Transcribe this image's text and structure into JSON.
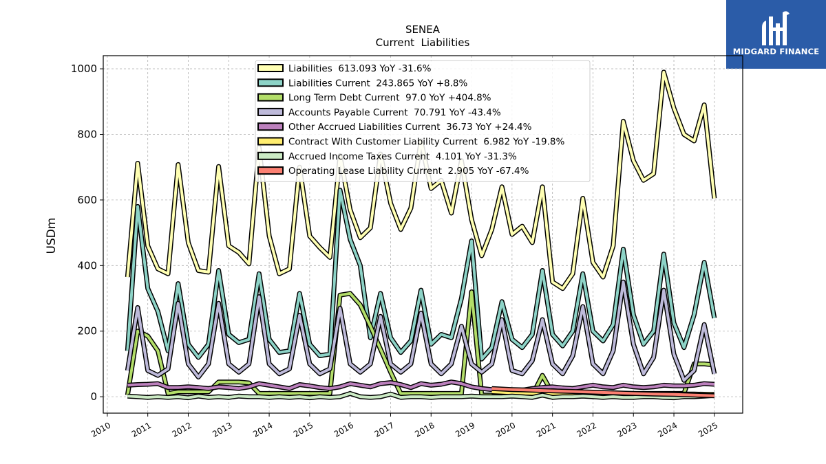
{
  "brand": {
    "name": "MIDGARD FINANCE",
    "background": "#2b5ca8",
    "icon": "midgard-logo-icon"
  },
  "chart_data": {
    "type": "line",
    "title": "SENEA",
    "subtitle": "Current  Liabilities",
    "ylabel": "USDm",
    "xlabel": "",
    "xlim": [
      2009.9,
      2025.7
    ],
    "ylim": [
      -50,
      1040
    ],
    "yticks": [
      0,
      200,
      400,
      600,
      800,
      1000
    ],
    "xticks": [
      "2010",
      "2011",
      "2012",
      "2013",
      "2014",
      "2015",
      "2016",
      "2017",
      "2018",
      "2019",
      "2020",
      "2021",
      "2022",
      "2023",
      "2024",
      "2025"
    ],
    "grid": true,
    "legend_position": "top-center",
    "series": [
      {
        "name": "Liabilities",
        "legend": "Liabilities  613.093 YoY -31.6%",
        "color": "#ffffb3",
        "x": [
          2010.5,
          2010.75,
          2011.0,
          2011.25,
          2011.5,
          2011.75,
          2012.0,
          2012.25,
          2012.5,
          2012.75,
          2013.0,
          2013.25,
          2013.5,
          2013.75,
          2014.0,
          2014.25,
          2014.5,
          2014.75,
          2015.0,
          2015.25,
          2015.5,
          2015.75,
          2016.0,
          2016.25,
          2016.5,
          2016.75,
          2017.0,
          2017.25,
          2017.5,
          2017.75,
          2018.0,
          2018.25,
          2018.5,
          2018.75,
          2019.0,
          2019.25,
          2019.5,
          2019.75,
          2020.0,
          2020.25,
          2020.5,
          2020.75,
          2021.0,
          2021.25,
          2021.5,
          2021.75,
          2022.0,
          2022.25,
          2022.5,
          2022.75,
          2023.0,
          2023.25,
          2023.5,
          2023.75,
          2024.0,
          2024.25,
          2024.5,
          2024.75,
          2025.0
        ],
        "y": [
          365,
          712,
          460,
          390,
          375,
          708,
          470,
          385,
          380,
          702,
          460,
          440,
          405,
          760,
          490,
          375,
          390,
          700,
          490,
          455,
          425,
          735,
          570,
          485,
          515,
          740,
          590,
          510,
          575,
          780,
          635,
          660,
          560,
          720,
          540,
          430,
          510,
          640,
          495,
          520,
          470,
          640,
          350,
          330,
          375,
          605,
          410,
          365,
          460,
          840,
          720,
          660,
          680,
          990,
          880,
          800,
          780,
          890,
          605
        ]
      },
      {
        "name": "Liabilities Current",
        "legend": "Liabilities Current  243.865 YoY +8.8%",
        "color": "#8dd3c7",
        "x": [
          2010.5,
          2010.75,
          2011.0,
          2011.25,
          2011.5,
          2011.75,
          2012.0,
          2012.25,
          2012.5,
          2012.75,
          2013.0,
          2013.25,
          2013.5,
          2013.75,
          2014.0,
          2014.25,
          2014.5,
          2014.75,
          2015.0,
          2015.25,
          2015.5,
          2015.75,
          2016.0,
          2016.25,
          2016.5,
          2016.75,
          2017.0,
          2017.25,
          2017.5,
          2017.75,
          2018.0,
          2018.25,
          2018.5,
          2018.75,
          2019.0,
          2019.25,
          2019.5,
          2019.75,
          2020.0,
          2020.25,
          2020.5,
          2020.75,
          2021.0,
          2021.25,
          2021.5,
          2021.75,
          2022.0,
          2022.25,
          2022.5,
          2022.75,
          2023.0,
          2023.25,
          2023.5,
          2023.75,
          2024.0,
          2024.25,
          2024.5,
          2024.75,
          2025.0
        ],
        "y": [
          140,
          580,
          330,
          260,
          140,
          345,
          160,
          120,
          160,
          385,
          190,
          165,
          175,
          375,
          175,
          135,
          140,
          315,
          160,
          125,
          130,
          630,
          480,
          400,
          180,
          315,
          180,
          135,
          170,
          325,
          160,
          190,
          180,
          300,
          475,
          115,
          150,
          290,
          175,
          150,
          190,
          385,
          190,
          155,
          200,
          375,
          200,
          170,
          220,
          450,
          250,
          160,
          200,
          435,
          225,
          150,
          250,
          410,
          240
        ]
      },
      {
        "name": "Long Term Debt Current",
        "legend": "Long Term Debt Current  97.0 YoY +404.8%",
        "color": "#b3de69",
        "x": [
          2010.5,
          2010.75,
          2011.0,
          2011.25,
          2011.5,
          2011.75,
          2012.0,
          2012.25,
          2012.5,
          2012.75,
          2013.0,
          2013.25,
          2013.5,
          2013.75,
          2014.0,
          2014.25,
          2014.5,
          2014.75,
          2015.0,
          2015.25,
          2015.5,
          2015.75,
          2016.0,
          2016.25,
          2016.5,
          2016.75,
          2017.0,
          2017.25,
          2017.5,
          2017.75,
          2018.0,
          2018.25,
          2018.5,
          2018.75,
          2019.0,
          2019.25,
          2019.5,
          2019.75,
          2020.0,
          2020.25,
          2020.5,
          2020.75,
          2021.0,
          2021.25,
          2021.5,
          2021.75,
          2022.0,
          2022.25,
          2022.5,
          2022.75,
          2023.0,
          2023.25,
          2023.5,
          2023.75,
          2024.0,
          2024.25,
          2024.5,
          2024.75,
          2025.0
        ],
        "y": [
          5,
          200,
          185,
          140,
          10,
          15,
          15,
          15,
          15,
          45,
          45,
          45,
          42,
          10,
          10,
          10,
          10,
          10,
          10,
          10,
          10,
          310,
          315,
          280,
          215,
          145,
          75,
          10,
          10,
          10,
          10,
          10,
          10,
          10,
          320,
          5,
          5,
          5,
          5,
          5,
          5,
          65,
          10,
          10,
          10,
          10,
          10,
          10,
          10,
          10,
          10,
          10,
          10,
          10,
          10,
          10,
          100,
          100,
          97
        ]
      },
      {
        "name": "Accounts Payable Current",
        "legend": "Accounts Payable Current  70.791 YoY -43.4%",
        "color": "#bebada",
        "x": [
          2010.5,
          2010.75,
          2011.0,
          2011.25,
          2011.5,
          2011.75,
          2012.0,
          2012.25,
          2012.5,
          2012.75,
          2013.0,
          2013.25,
          2013.5,
          2013.75,
          2014.0,
          2014.25,
          2014.5,
          2014.75,
          2015.0,
          2015.25,
          2015.5,
          2015.75,
          2016.0,
          2016.25,
          2016.5,
          2016.75,
          2017.0,
          2017.25,
          2017.5,
          2017.75,
          2018.0,
          2018.25,
          2018.5,
          2018.75,
          2019.0,
          2019.25,
          2019.5,
          2019.75,
          2020.0,
          2020.25,
          2020.5,
          2020.75,
          2021.0,
          2021.25,
          2021.5,
          2021.75,
          2022.0,
          2022.25,
          2022.5,
          2022.75,
          2023.0,
          2023.25,
          2023.5,
          2023.75,
          2024.0,
          2024.25,
          2024.5,
          2024.75,
          2025.0
        ],
        "y": [
          80,
          272,
          80,
          65,
          85,
          285,
          100,
          60,
          100,
          285,
          100,
          75,
          100,
          305,
          100,
          70,
          85,
          248,
          100,
          70,
          85,
          270,
          100,
          75,
          100,
          245,
          100,
          75,
          100,
          255,
          100,
          70,
          100,
          215,
          100,
          75,
          100,
          235,
          80,
          70,
          110,
          235,
          100,
          70,
          125,
          275,
          100,
          70,
          140,
          350,
          160,
          70,
          120,
          325,
          130,
          50,
          80,
          220,
          70
        ]
      },
      {
        "name": "Other Accrued Liabilities Current",
        "legend": "Other Accrued Liabilities Current  36.73 YoY +24.4%",
        "color": "#bc80bd",
        "x": [
          2010.5,
          2010.75,
          2011.0,
          2011.25,
          2011.5,
          2011.75,
          2012.0,
          2012.25,
          2012.5,
          2012.75,
          2013.0,
          2013.25,
          2013.5,
          2013.75,
          2014.0,
          2014.25,
          2014.5,
          2014.75,
          2015.0,
          2015.25,
          2015.5,
          2015.75,
          2016.0,
          2016.25,
          2016.5,
          2016.75,
          2017.0,
          2017.25,
          2017.5,
          2017.75,
          2018.0,
          2018.25,
          2018.5,
          2018.75,
          2019.0,
          2019.25,
          2019.5,
          2019.75,
          2020.0,
          2020.25,
          2020.5,
          2020.75,
          2021.0,
          2021.25,
          2021.5,
          2021.75,
          2022.0,
          2022.25,
          2022.5,
          2022.75,
          2023.0,
          2023.25,
          2023.5,
          2023.75,
          2024.0,
          2024.25,
          2024.5,
          2024.75,
          2025.0
        ],
        "y": [
          35,
          37,
          38,
          40,
          28,
          28,
          30,
          28,
          25,
          30,
          28,
          25,
          30,
          40,
          35,
          30,
          25,
          37,
          33,
          28,
          25,
          30,
          40,
          35,
          30,
          40,
          43,
          37,
          28,
          40,
          35,
          38,
          45,
          40,
          30,
          25,
          22,
          20,
          20,
          20,
          25,
          28,
          30,
          27,
          25,
          30,
          35,
          30,
          28,
          35,
          30,
          28,
          30,
          35,
          33,
          33,
          35,
          40,
          38
        ]
      },
      {
        "name": "Contract With Customer Liability Current",
        "legend": "Contract With Customer Liability Current  6.982 YoY -19.8%",
        "color": "#ffed6f",
        "x": [
          2019.5,
          2020.0,
          2020.5,
          2021.0,
          2021.5,
          2022.0,
          2022.5,
          2023.0,
          2023.5,
          2024.0,
          2024.5,
          2025.0
        ],
        "y": [
          15,
          12,
          10,
          9,
          8,
          8,
          9,
          8,
          9,
          8,
          8,
          7
        ]
      },
      {
        "name": "Accrued Income Taxes Current",
        "legend": "Accrued Income Taxes Current  4.101 YoY -31.3%",
        "color": "#ccebc5",
        "x": [
          2010.5,
          2010.75,
          2011.0,
          2011.25,
          2011.5,
          2011.75,
          2012.0,
          2012.25,
          2012.5,
          2012.75,
          2013.0,
          2013.25,
          2013.5,
          2013.75,
          2014.0,
          2014.25,
          2014.5,
          2014.75,
          2015.0,
          2015.25,
          2015.5,
          2015.75,
          2016.0,
          2016.25,
          2016.5,
          2016.75,
          2017.0,
          2017.25,
          2017.5,
          2017.75,
          2018.0,
          2018.25,
          2018.5,
          2018.75,
          2019.0,
          2019.25,
          2019.5,
          2019.75,
          2020.0,
          2020.25,
          2020.5,
          2020.75,
          2021.0,
          2021.25,
          2021.5,
          2021.75,
          2022.0,
          2022.25,
          2022.5,
          2022.75,
          2023.0,
          2023.25,
          2023.5,
          2023.75,
          2024.0,
          2024.25,
          2024.5,
          2024.75,
          2025.0
        ],
        "y": [
          2,
          0,
          -2,
          0,
          -2,
          0,
          -3,
          2,
          -2,
          0,
          -2,
          2,
          0,
          0,
          -2,
          0,
          -2,
          0,
          -3,
          0,
          -2,
          0,
          10,
          0,
          -2,
          0,
          8,
          -2,
          0,
          0,
          -2,
          0,
          0,
          0,
          2,
          0,
          0,
          0,
          2,
          0,
          -2,
          5,
          -2,
          0,
          0,
          2,
          0,
          -2,
          0,
          -2,
          -2,
          0,
          0,
          -2,
          -3,
          0,
          0,
          2,
          4
        ]
      },
      {
        "name": "Operating Lease Liability Current",
        "legend": "Operating Lease Liability Current  2.905 YoY -67.4%",
        "color": "#fb8072",
        "x": [
          2019.5,
          2020.0,
          2020.5,
          2021.0,
          2021.5,
          2022.0,
          2022.5,
          2023.0,
          2023.5,
          2024.0,
          2024.5,
          2025.0
        ],
        "y": [
          25,
          22,
          20,
          18,
          16,
          14,
          12,
          10,
          8,
          7,
          5,
          3
        ]
      }
    ]
  }
}
